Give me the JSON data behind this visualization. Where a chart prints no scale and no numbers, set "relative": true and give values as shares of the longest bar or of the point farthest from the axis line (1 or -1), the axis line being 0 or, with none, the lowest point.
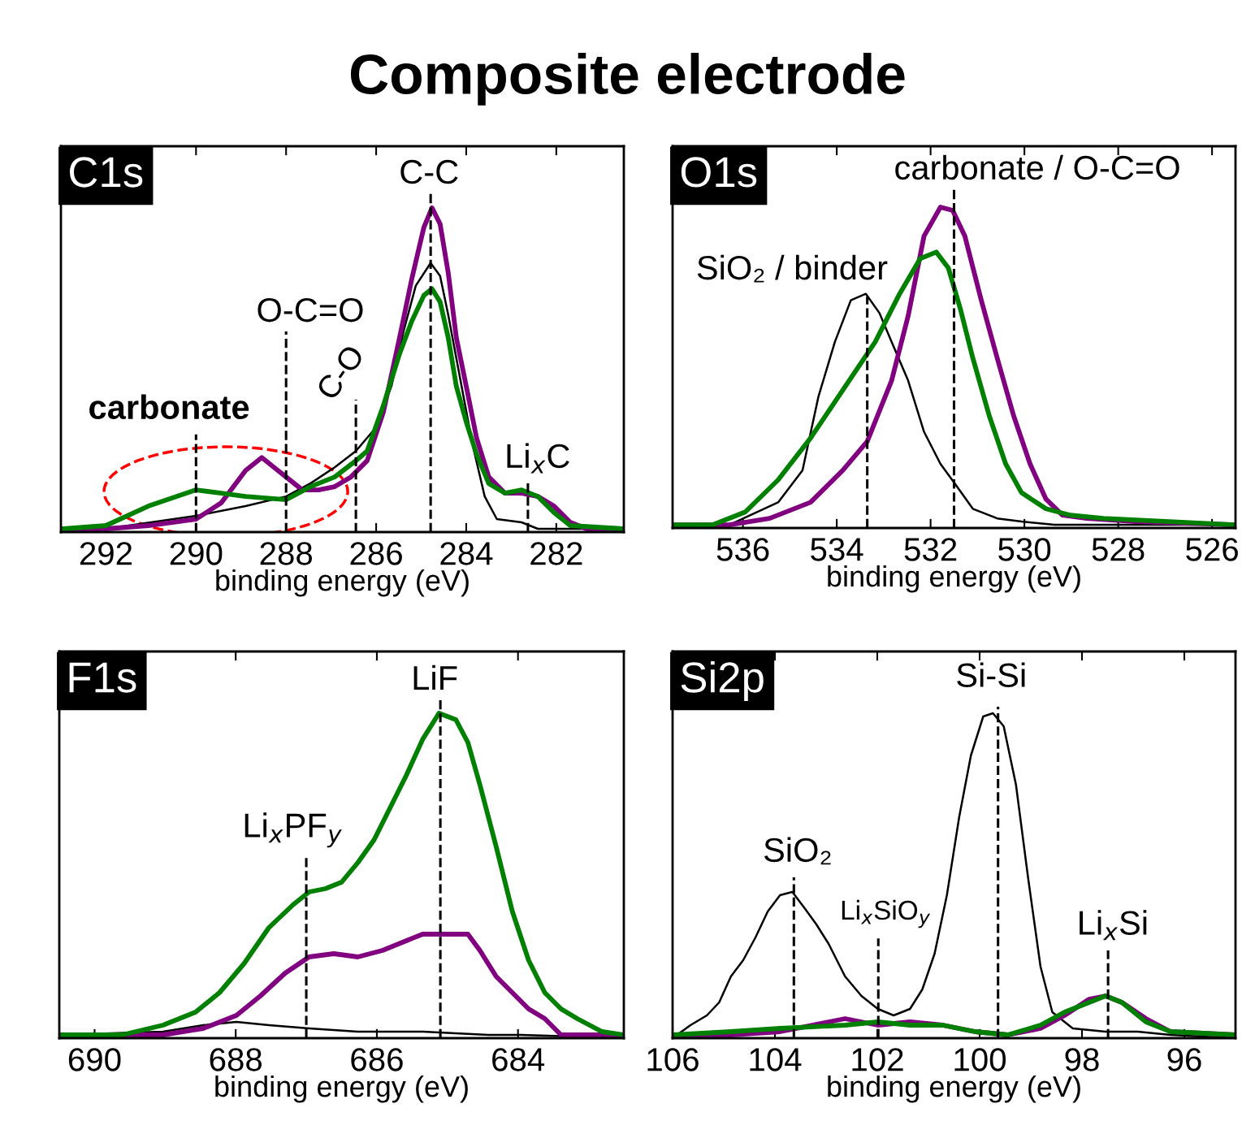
{
  "chart_data": [
    {
      "type": "line",
      "title": "Composite electrode",
      "subtitle": "C1s",
      "xlabel": "binding energy (eV)",
      "relative": true,
      "tick_labels": "x",
      "xlim": [
        293,
        280.5
      ],
      "xticks": [
        292,
        290,
        288,
        286,
        284,
        282
      ],
      "series": [
        {
          "color": "#000000",
          "x": [
            292.95,
            292,
            290,
            288.9,
            288,
            287.46,
            286.92,
            286.45,
            286.02,
            285.66,
            285.39,
            285.12,
            284.79,
            284.58,
            284.4,
            284.13,
            283.86,
            283.59,
            283.32,
            282.77,
            282.41,
            280.5
          ],
          "values": [
            0.01,
            0.01,
            0.05,
            0.08,
            0.11,
            0.15,
            0.2,
            0.25,
            0.32,
            0.45,
            0.62,
            0.76,
            0.83,
            0.79,
            0.67,
            0.47,
            0.27,
            0.11,
            0.04,
            0.03,
            0.01,
            0.01
          ]
        },
        {
          "color": "#800080",
          "x": [
            292.95,
            292,
            291.06,
            290,
            289.44,
            288.9,
            288.54,
            288.18,
            288,
            287.64,
            287.28,
            286.92,
            286.56,
            286.2,
            285.84,
            285.48,
            285.21,
            284.94,
            284.76,
            284.58,
            284.4,
            284.22,
            284,
            283.77,
            283.5,
            283.14,
            282.77,
            282.41,
            282.05,
            281.69,
            281.33,
            280.5
          ],
          "values": [
            0.01,
            0.01,
            0.02,
            0.04,
            0.09,
            0.19,
            0.23,
            0.19,
            0.17,
            0.13,
            0.13,
            0.14,
            0.17,
            0.22,
            0.37,
            0.6,
            0.78,
            0.94,
            1,
            0.95,
            0.8,
            0.6,
            0.45,
            0.29,
            0.17,
            0.12,
            0.12,
            0.11,
            0.08,
            0.03,
            0.01,
            0.01
          ]
        },
        {
          "color": "#008000",
          "x": [
            292.95,
            292,
            291.06,
            290,
            289.44,
            288.9,
            288,
            287.46,
            286.92,
            286.45,
            286.2,
            285.84,
            285.48,
            285.21,
            284.94,
            284.76,
            284.58,
            284.4,
            284.22,
            284,
            283.77,
            283.5,
            283.14,
            282.77,
            282.41,
            282.05,
            281.69,
            280.5
          ],
          "values": [
            0.01,
            0.02,
            0.08,
            0.13,
            0.12,
            0.11,
            0.1,
            0.14,
            0.17,
            0.22,
            0.25,
            0.39,
            0.55,
            0.65,
            0.73,
            0.75,
            0.71,
            0.6,
            0.45,
            0.34,
            0.24,
            0.15,
            0.12,
            0.13,
            0.11,
            0.06,
            0.02,
            0.01
          ]
        }
      ],
      "ref_lines": [
        {
          "axis": "x",
          "value": 290,
          "label": "carbonate",
          "color": "#000000",
          "line_style": "dashed"
        },
        {
          "axis": "x",
          "value": 288,
          "label": "O-C=O",
          "color": "#000000",
          "line_style": "dashed"
        },
        {
          "axis": "x",
          "value": 286.45,
          "label": "C-O",
          "color": "#000000",
          "line_style": "dashed"
        },
        {
          "axis": "x",
          "value": 284.79,
          "label": "C-C",
          "color": "#000000",
          "line_style": "dashed"
        },
        {
          "axis": "x",
          "value": 282.63,
          "label": "Li$_{x}$C",
          "color": "#000000",
          "line_style": "dashed"
        }
      ]
    },
    {
      "type": "line",
      "subtitle": "O1s",
      "xlabel": "binding energy (eV)",
      "relative": true,
      "tick_labels": "x",
      "xlim": [
        537.5,
        525.5
      ],
      "xticks": [
        536,
        534,
        532,
        530,
        528,
        526
      ],
      "series": [
        {
          "color": "#000000",
          "x": [
            537.5,
            536.29,
            535.25,
            534.73,
            534.39,
            534.04,
            533.7,
            533.38,
            533.09,
            532.83,
            532.48,
            532.14,
            531.79,
            531.44,
            531.1,
            530.58,
            530.06,
            529.36,
            525.5
          ],
          "values": [
            0.01,
            0.01,
            0.08,
            0.18,
            0.41,
            0.58,
            0.71,
            0.73,
            0.67,
            0.58,
            0.46,
            0.3,
            0.2,
            0.13,
            0.06,
            0.03,
            0.02,
            0.01,
            0.01
          ]
        },
        {
          "color": "#800080",
          "x": [
            537.5,
            536.29,
            535.43,
            534.56,
            533.87,
            533.35,
            532.83,
            532.48,
            532.14,
            531.79,
            531.53,
            531.27,
            530.92,
            530.58,
            530.23,
            529.88,
            529.54,
            529.19,
            528.67,
            527.63,
            525.5
          ],
          "values": [
            0.01,
            0.01,
            0.03,
            0.08,
            0.18,
            0.27,
            0.46,
            0.66,
            0.91,
            1,
            0.99,
            0.91,
            0.71,
            0.53,
            0.35,
            0.2,
            0.09,
            0.04,
            0.03,
            0.02,
            0.01
          ]
        },
        {
          "color": "#008000",
          "x": [
            537.5,
            536.64,
            535.95,
            535.25,
            534.56,
            533.87,
            533.18,
            532.66,
            532.22,
            531.88,
            531.62,
            531.36,
            531.1,
            530.75,
            530.4,
            530.06,
            529.54,
            529.02,
            528.32,
            525.5
          ],
          "values": [
            0.01,
            0.01,
            0.05,
            0.15,
            0.28,
            0.43,
            0.58,
            0.73,
            0.84,
            0.86,
            0.81,
            0.68,
            0.53,
            0.35,
            0.2,
            0.11,
            0.06,
            0.04,
            0.03,
            0.01
          ]
        }
      ],
      "ref_lines": [
        {
          "axis": "x",
          "value": 533.35,
          "label": "SiO₂ / binder",
          "color": "#000000",
          "line_style": "dashed"
        },
        {
          "axis": "x",
          "value": 531.5,
          "label": "carbonate / O-C=O",
          "color": "#000000",
          "line_style": "dashed"
        }
      ]
    },
    {
      "type": "line",
      "subtitle": "F1s",
      "xlabel": "binding energy (eV)",
      "relative": true,
      "tick_labels": "x",
      "xlim": [
        690.5,
        682.5
      ],
      "xticks": [
        690,
        688,
        686,
        684
      ],
      "series": [
        {
          "color": "#000000",
          "x": [
            690.5,
            689.03,
            688.46,
            687.99,
            687.53,
            686.96,
            686.27,
            685.35,
            684.42,
            683.96,
            682.5
          ],
          "values": [
            0.01,
            0.02,
            0.04,
            0.05,
            0.04,
            0.03,
            0.02,
            0.02,
            0.01,
            0.01,
            0
          ]
        },
        {
          "color": "#800080",
          "x": [
            690.5,
            689.03,
            688.46,
            687.99,
            687.65,
            687.3,
            686.96,
            686.61,
            686.27,
            685.92,
            685.58,
            685.35,
            685.12,
            684.88,
            684.71,
            684.54,
            684.31,
            684.08,
            683.85,
            683.62,
            683.39,
            682.5
          ],
          "values": [
            0.01,
            0.01,
            0.03,
            0.07,
            0.13,
            0.2,
            0.25,
            0.26,
            0.25,
            0.27,
            0.3,
            0.32,
            0.32,
            0.32,
            0.32,
            0.27,
            0.19,
            0.14,
            0.09,
            0.06,
            0.01,
            0.01
          ]
        },
        {
          "color": "#008000",
          "x": [
            690.5,
            689.61,
            689.03,
            688.57,
            688.23,
            687.88,
            687.53,
            687.19,
            686.96,
            686.73,
            686.5,
            686.27,
            686.04,
            685.81,
            685.58,
            685.35,
            685.12,
            684.88,
            684.71,
            684.54,
            684.31,
            684.08,
            683.85,
            683.62,
            683.39,
            683.16,
            682.81,
            682.5
          ],
          "values": [
            0.01,
            0.01,
            0.04,
            0.08,
            0.14,
            0.23,
            0.34,
            0.41,
            0.45,
            0.46,
            0.48,
            0.54,
            0.61,
            0.71,
            0.81,
            0.92,
            1,
            0.98,
            0.91,
            0.78,
            0.59,
            0.39,
            0.24,
            0.14,
            0.09,
            0.06,
            0.02,
            0.01
          ]
        }
      ],
      "ref_lines": [
        {
          "axis": "x",
          "value": 687.0,
          "label": "Li$_{x}$PF$_{y}$",
          "color": "#000000",
          "line_style": "dashed"
        },
        {
          "axis": "x",
          "value": 685.1,
          "label": "LiF",
          "color": "#000000",
          "line_style": "dashed"
        }
      ]
    },
    {
      "type": "line",
      "subtitle": "Si2p",
      "xlabel": "binding energy (eV)",
      "relative": true,
      "tick_labels": "x",
      "xlim": [
        106,
        95
      ],
      "xticks": [
        106,
        104,
        102,
        100,
        98,
        96
      ],
      "series": [
        {
          "color": "#000000",
          "x": [
            106,
            105.65,
            105.33,
            105.09,
            104.86,
            104.62,
            104.38,
            104.14,
            103.9,
            103.66,
            103.42,
            103.19,
            102.95,
            102.63,
            102.31,
            101.99,
            101.68,
            101.36,
            101.12,
            100.88,
            100.64,
            100.4,
            100.17,
            99.93,
            99.74,
            99.53,
            99.29,
            99.05,
            98.81,
            98.58,
            98.18,
            97.54,
            96.91,
            96.27,
            95
          ],
          "values": [
            0,
            0.04,
            0.07,
            0.11,
            0.19,
            0.24,
            0.31,
            0.39,
            0.44,
            0.45,
            0.4,
            0.35,
            0.29,
            0.19,
            0.13,
            0.09,
            0.07,
            0.09,
            0.15,
            0.26,
            0.44,
            0.68,
            0.87,
            0.99,
            1,
            0.96,
            0.78,
            0.49,
            0.22,
            0.08,
            0.03,
            0.02,
            0.02,
            0.01,
            0
          ]
        },
        {
          "color": "#800080",
          "x": [
            106,
            104.86,
            103.9,
            102.63,
            101.99,
            101.36,
            100.72,
            100.09,
            99.45,
            98.81,
            98.34,
            97.86,
            97.54,
            97.22,
            96.75,
            96.27,
            95
          ],
          "values": [
            0.01,
            0.01,
            0.02,
            0.06,
            0.04,
            0.05,
            0.04,
            0.02,
            0.01,
            0.03,
            0.07,
            0.12,
            0.13,
            0.11,
            0.06,
            0.02,
            0.01
          ]
        },
        {
          "color": "#008000",
          "x": [
            106,
            104.86,
            103.9,
            102.63,
            101.99,
            101.36,
            100.72,
            100.09,
            99.45,
            98.81,
            98.34,
            97.86,
            97.54,
            97.22,
            96.75,
            96.27,
            95
          ],
          "values": [
            0.01,
            0.02,
            0.03,
            0.04,
            0.05,
            0.04,
            0.04,
            0.02,
            0.01,
            0.04,
            0.08,
            0.11,
            0.13,
            0.11,
            0.05,
            0.02,
            0.01
          ]
        }
      ],
      "ref_lines": [
        {
          "axis": "x",
          "value": 103.63,
          "label": "SiO₂",
          "color": "#000000",
          "line_style": "dashed"
        },
        {
          "axis": "x",
          "value": 101.98,
          "label": "Li$_{x}$SiO$_{y}$",
          "color": "#000000",
          "line_style": "dashed"
        },
        {
          "axis": "x",
          "value": 99.64,
          "label": "Si-Si",
          "color": "#000000",
          "line_style": "dashed"
        },
        {
          "axis": "x",
          "value": 97.49,
          "label": "Li$_{x}$Si",
          "color": "#000000",
          "line_style": "dashed"
        }
      ]
    }
  ]
}
